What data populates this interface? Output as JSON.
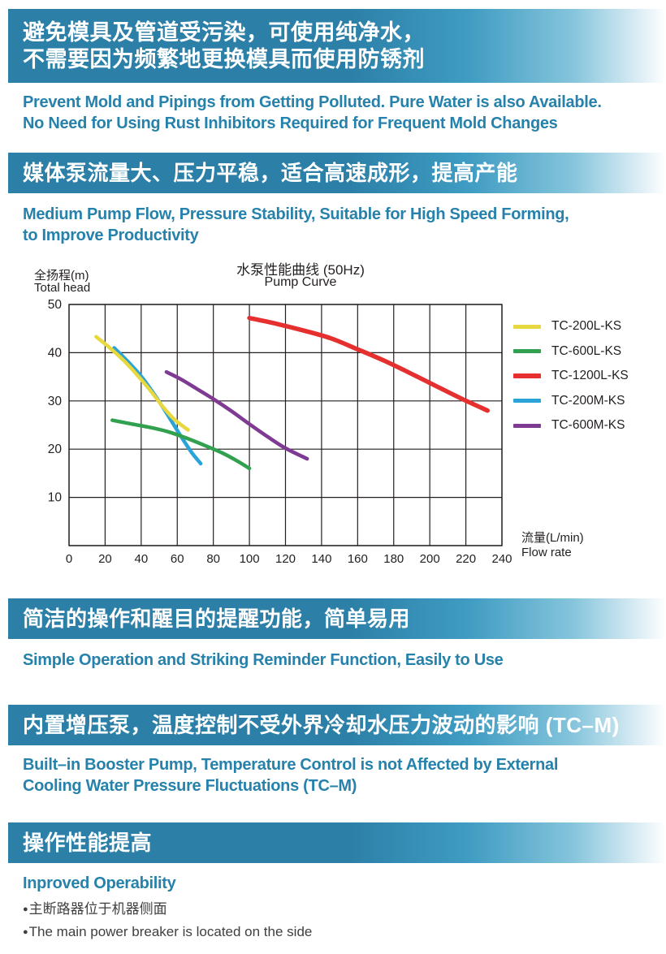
{
  "colors": {
    "banner_blue": "#2c80a8",
    "heading_blue": "#2681ab",
    "ink": "#231f20",
    "bullet_text": "#3f3f3f"
  },
  "sections": [
    {
      "banner_zh": [
        "避免模具及管道受污染，可使用纯净水，",
        "不需要因为频繁地更换模具而使用防锈剂"
      ],
      "heading_en": [
        "Prevent Mold and Pipings from Getting Polluted. Pure Water is also Available.",
        "No Need for Using Rust Inhibitors Required for Frequent Mold Changes"
      ]
    },
    {
      "banner_zh": [
        "媒体泵流量大、压力平稳，适合高速成形，提高产能"
      ],
      "heading_en": [
        "Medium Pump Flow, Pressure Stability, Suitable for High Speed Forming,",
        "to Improve Productivity"
      ]
    },
    {
      "banner_zh": [
        "简洁的操作和醒目的提醒功能，简单易用"
      ],
      "heading_en": [
        "Simple Operation and Striking Reminder Function, Easily to Use"
      ]
    },
    {
      "banner_zh": [
        "内置增压泵，温度控制不受外界冷却水压力波动的影响 (TC–M)"
      ],
      "heading_en": [
        "Built–in Booster Pump, Temperature Control is not Affected by External",
        "Cooling Water Pressure Fluctuations (TC–M)"
      ]
    },
    {
      "banner_zh": [
        "操作性能提高"
      ],
      "heading_en": [
        "Inproved Operability"
      ],
      "bullets": [
        "主断路器位于机器侧面",
        "The main power breaker is located on the side"
      ]
    }
  ],
  "bullet_glyph": "●",
  "chart_data": {
    "type": "line",
    "title_zh": "水泵性能曲线 (50Hz)",
    "title_en": "Pump Curve",
    "ylabel_zh": "全扬程(m)",
    "ylabel_en": "Total head",
    "xlabel_zh": "流量(L/min)",
    "xlabel_en": "Flow rate",
    "xlim": [
      0,
      240
    ],
    "ylim": [
      0,
      50
    ],
    "grid": true,
    "grid_color": "#231f20",
    "ink": "#231f20",
    "legend_position": "right",
    "xticks": [
      0,
      20,
      40,
      60,
      80,
      100,
      120,
      140,
      160,
      180,
      200,
      220,
      240
    ],
    "yticks_labeled": [
      10,
      20,
      30,
      40,
      50
    ],
    "ytick_step": 10,
    "series": [
      {
        "name": "TC-200L-KS",
        "color": "#e8d83f",
        "width": 4.5,
        "points": [
          [
            15,
            43.3
          ],
          [
            22,
            41.2
          ],
          [
            30,
            38.5
          ],
          [
            38,
            35.3
          ],
          [
            45,
            32.2
          ],
          [
            52,
            28.8
          ],
          [
            58,
            26.3
          ],
          [
            63,
            24.8
          ],
          [
            66,
            24
          ]
        ]
      },
      {
        "name": "TC-600L-KS",
        "color": "#31a04f",
        "width": 4.5,
        "points": [
          [
            24,
            26
          ],
          [
            35,
            25.2
          ],
          [
            45,
            24.5
          ],
          [
            55,
            23.6
          ],
          [
            65,
            22.3
          ],
          [
            75,
            20.8
          ],
          [
            85,
            19.2
          ],
          [
            93,
            17.6
          ],
          [
            100,
            16
          ]
        ]
      },
      {
        "name": "TC-1200L-KS",
        "color": "#e62f2f",
        "width": 5.5,
        "points": [
          [
            100,
            47.2
          ],
          [
            115,
            46
          ],
          [
            130,
            44.6
          ],
          [
            145,
            43
          ],
          [
            160,
            40.7
          ],
          [
            175,
            38.3
          ],
          [
            190,
            35.6
          ],
          [
            205,
            32.8
          ],
          [
            218,
            30.4
          ],
          [
            232,
            28
          ]
        ]
      },
      {
        "name": "TC-200M-KS",
        "color": "#2aa3d9",
        "width": 4.5,
        "points": [
          [
            25,
            41
          ],
          [
            32,
            38.4
          ],
          [
            40,
            35.1
          ],
          [
            47,
            31.5
          ],
          [
            53,
            28.1
          ],
          [
            58,
            25.1
          ],
          [
            63,
            22.1
          ],
          [
            68,
            19.3
          ],
          [
            73,
            17
          ]
        ]
      },
      {
        "name": "TC-600M-KS",
        "color": "#7f3a93",
        "width": 4.5,
        "points": [
          [
            54,
            36
          ],
          [
            62,
            34.5
          ],
          [
            70,
            32.7
          ],
          [
            80,
            30.4
          ],
          [
            90,
            27.9
          ],
          [
            100,
            25.2
          ],
          [
            110,
            22.6
          ],
          [
            120,
            20.2
          ],
          [
            132,
            18
          ]
        ]
      }
    ]
  }
}
